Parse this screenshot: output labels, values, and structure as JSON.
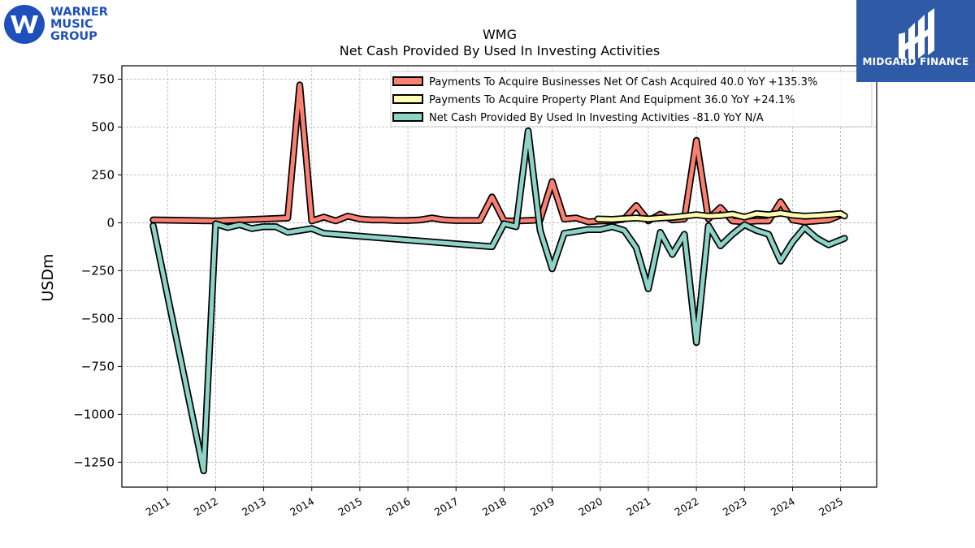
{
  "logos": {
    "left": {
      "line1": "WARNER",
      "line2": "MUSIC",
      "line3": "GROUP",
      "color": "#1e4fbd"
    },
    "right": {
      "text": "MIDGARD FINANCE",
      "bg": "#2e5aa8"
    }
  },
  "chart_data": {
    "type": "line",
    "title": "WMG",
    "subtitle": "Net Cash Provided By Used In Investing Activities",
    "ylabel": "USDm",
    "xlabel": "",
    "ylim": [
      -1380,
      820
    ],
    "xlim": [
      2010.05,
      2025.75
    ],
    "yticks": [
      750,
      500,
      250,
      0,
      -250,
      -500,
      -750,
      -1000,
      -1250
    ],
    "ytick_labels": [
      "750",
      "500",
      "250",
      "0",
      "−250",
      "−500",
      "−750",
      "−1000",
      "−1250"
    ],
    "xticks": [
      2011,
      2012,
      2013,
      2014,
      2015,
      2016,
      2017,
      2018,
      2019,
      2020,
      2021,
      2022,
      2023,
      2024,
      2025
    ],
    "xtick_labels": [
      "2011",
      "2012",
      "2013",
      "2014",
      "2015",
      "2016",
      "2017",
      "2018",
      "2019",
      "2020",
      "2021",
      "2022",
      "2023",
      "2024",
      "2025"
    ],
    "grid": true,
    "legend_position": "top-right",
    "series": [
      {
        "name": "Payments To Acquire Businesses Net Of Cash Acquired  40.0 YoY +135.3%",
        "color": "#fa8072",
        "points": [
          [
            2010.7,
            15
          ],
          [
            2012.0,
            10
          ],
          [
            2013.0,
            20
          ],
          [
            2013.5,
            25
          ],
          [
            2013.75,
            720
          ],
          [
            2014.0,
            10
          ],
          [
            2014.25,
            30
          ],
          [
            2014.5,
            10
          ],
          [
            2014.75,
            35
          ],
          [
            2015.0,
            20
          ],
          [
            2015.25,
            15
          ],
          [
            2015.5,
            15
          ],
          [
            2015.75,
            12
          ],
          [
            2016.0,
            12
          ],
          [
            2016.25,
            15
          ],
          [
            2016.5,
            25
          ],
          [
            2016.75,
            15
          ],
          [
            2017.0,
            12
          ],
          [
            2017.25,
            12
          ],
          [
            2017.5,
            12
          ],
          [
            2017.75,
            135
          ],
          [
            2018.0,
            10
          ],
          [
            2018.25,
            10
          ],
          [
            2018.5,
            12
          ],
          [
            2018.75,
            15
          ],
          [
            2019.0,
            215
          ],
          [
            2019.25,
            20
          ],
          [
            2019.5,
            25
          ],
          [
            2019.75,
            5
          ],
          [
            2020.0,
            10
          ],
          [
            2020.25,
            10
          ],
          [
            2020.5,
            20
          ],
          [
            2020.75,
            90
          ],
          [
            2021.0,
            10
          ],
          [
            2021.25,
            45
          ],
          [
            2021.5,
            15
          ],
          [
            2021.75,
            20
          ],
          [
            2022.0,
            430
          ],
          [
            2022.25,
            20
          ],
          [
            2022.5,
            80
          ],
          [
            2022.75,
            10
          ],
          [
            2023.0,
            5
          ],
          [
            2023.25,
            10
          ],
          [
            2023.5,
            10
          ],
          [
            2023.75,
            110
          ],
          [
            2024.0,
            15
          ],
          [
            2024.25,
            5
          ],
          [
            2024.5,
            10
          ],
          [
            2024.75,
            15
          ],
          [
            2025.0,
            40
          ]
        ]
      },
      {
        "name": "Payments To Acquire Property Plant And Equipment  36.0 YoY +24.1%",
        "color": "#ffffb3",
        "points": [
          [
            2019.95,
            20
          ],
          [
            2020.25,
            18
          ],
          [
            2020.5,
            22
          ],
          [
            2020.75,
            25
          ],
          [
            2021.0,
            20
          ],
          [
            2021.25,
            25
          ],
          [
            2021.5,
            28
          ],
          [
            2021.75,
            35
          ],
          [
            2022.0,
            42
          ],
          [
            2022.25,
            35
          ],
          [
            2022.5,
            38
          ],
          [
            2022.75,
            45
          ],
          [
            2023.0,
            30
          ],
          [
            2023.25,
            48
          ],
          [
            2023.5,
            42
          ],
          [
            2023.75,
            50
          ],
          [
            2024.0,
            40
          ],
          [
            2024.25,
            35
          ],
          [
            2024.5,
            38
          ],
          [
            2024.75,
            42
          ],
          [
            2025.0,
            48
          ],
          [
            2025.08,
            36
          ]
        ]
      },
      {
        "name": "Net Cash Provided By Used In Investing Activities  -81.0 YoY N/A",
        "color": "#8dd3c7",
        "points": [
          [
            2010.7,
            -15
          ],
          [
            2011.75,
            -1295
          ],
          [
            2012.0,
            -5
          ],
          [
            2012.25,
            -25
          ],
          [
            2012.5,
            -10
          ],
          [
            2012.75,
            -30
          ],
          [
            2013.0,
            -20
          ],
          [
            2013.25,
            -20
          ],
          [
            2013.5,
            -50
          ],
          [
            2013.75,
            -40
          ],
          [
            2014.0,
            -30
          ],
          [
            2014.25,
            -55
          ],
          [
            2017.75,
            -125
          ],
          [
            2018.0,
            -5
          ],
          [
            2018.25,
            -20
          ],
          [
            2018.5,
            480
          ],
          [
            2018.75,
            -40
          ],
          [
            2019.0,
            -240
          ],
          [
            2019.25,
            -55
          ],
          [
            2019.5,
            -45
          ],
          [
            2019.75,
            -35
          ],
          [
            2020.0,
            -35
          ],
          [
            2020.25,
            -20
          ],
          [
            2020.5,
            -40
          ],
          [
            2020.75,
            -130
          ],
          [
            2021.0,
            -345
          ],
          [
            2021.25,
            -50
          ],
          [
            2021.5,
            -165
          ],
          [
            2021.75,
            -60
          ],
          [
            2022.0,
            -625
          ],
          [
            2022.25,
            -15
          ],
          [
            2022.5,
            -120
          ],
          [
            2022.75,
            -60
          ],
          [
            2023.0,
            -10
          ],
          [
            2023.25,
            -40
          ],
          [
            2023.5,
            -60
          ],
          [
            2023.75,
            -200
          ],
          [
            2024.0,
            -100
          ],
          [
            2024.25,
            -25
          ],
          [
            2024.5,
            -80
          ],
          [
            2024.75,
            -115
          ],
          [
            2025.08,
            -81
          ]
        ]
      }
    ]
  }
}
